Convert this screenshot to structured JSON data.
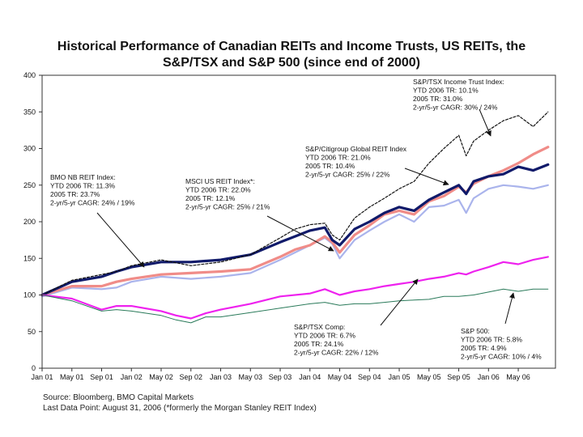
{
  "chart_data": {
    "type": "line",
    "title_line1": "Historical Performance of Canadian REITs and Income Trusts, US REITs, the",
    "title_line2": "S&P/TSX and S&P 500 (since end of 2000)",
    "xlabel": "",
    "ylabel": "",
    "ylim": [
      0,
      400
    ],
    "xlim": [
      0,
      69
    ],
    "grid": false,
    "y_ticks": [
      0,
      50,
      100,
      150,
      200,
      250,
      300,
      350,
      400
    ],
    "x_ticks": [
      {
        "label": "Jan 01",
        "x": 0
      },
      {
        "label": "May 01",
        "x": 4
      },
      {
        "label": "Sep 01",
        "x": 8
      },
      {
        "label": "Jan 02",
        "x": 12
      },
      {
        "label": "May 02",
        "x": 16
      },
      {
        "label": "Sep 02",
        "x": 20
      },
      {
        "label": "Jan 03",
        "x": 24
      },
      {
        "label": "May 03",
        "x": 28
      },
      {
        "label": "Sep 03",
        "x": 32
      },
      {
        "label": "Jan 04",
        "x": 36
      },
      {
        "label": "May 04",
        "x": 40
      },
      {
        "label": "Sep 04",
        "x": 44
      },
      {
        "label": "Jan 05",
        "x": 48
      },
      {
        "label": "May 05",
        "x": 52
      },
      {
        "label": "Sep 05",
        "x": 56
      },
      {
        "label": "Jan 06",
        "x": 60
      },
      {
        "label": "May 06",
        "x": 64
      }
    ],
    "series": [
      {
        "name": "MSCI US REIT Index",
        "color": "#aab4ec",
        "width": 2.2,
        "x": [
          0,
          4,
          8,
          10,
          12,
          16,
          20,
          24,
          28,
          32,
          34,
          36,
          38,
          39,
          40,
          42,
          44,
          46,
          48,
          50,
          52,
          54,
          56,
          57,
          58,
          60,
          62,
          64,
          66,
          68
        ],
        "y": [
          98,
          110,
          108,
          110,
          118,
          125,
          122,
          125,
          130,
          148,
          158,
          168,
          178,
          170,
          150,
          175,
          188,
          200,
          210,
          200,
          220,
          222,
          230,
          212,
          232,
          245,
          250,
          248,
          245,
          250
        ]
      },
      {
        "name": "BMO NB REIT Index",
        "color": "#f08c88",
        "width": 3.2,
        "x": [
          0,
          4,
          8,
          10,
          12,
          16,
          20,
          24,
          28,
          32,
          34,
          36,
          38,
          39,
          40,
          42,
          44,
          46,
          48,
          50,
          52,
          54,
          56,
          57,
          58,
          60,
          62,
          64,
          66,
          68
        ],
        "y": [
          100,
          112,
          112,
          118,
          122,
          128,
          130,
          132,
          135,
          152,
          162,
          168,
          180,
          172,
          158,
          182,
          195,
          210,
          215,
          210,
          228,
          235,
          248,
          240,
          252,
          262,
          270,
          280,
          292,
          302
        ]
      },
      {
        "name": "S&P/Citigroup Global REIT Index",
        "color": "#101a6a",
        "width": 3.2,
        "x": [
          0,
          4,
          8,
          10,
          12,
          16,
          20,
          24,
          28,
          32,
          34,
          36,
          38,
          39,
          40,
          42,
          44,
          46,
          48,
          50,
          52,
          54,
          56,
          57,
          58,
          60,
          62,
          64,
          66,
          68
        ],
        "y": [
          100,
          118,
          125,
          132,
          138,
          145,
          145,
          148,
          155,
          172,
          180,
          188,
          192,
          175,
          168,
          190,
          200,
          212,
          220,
          215,
          230,
          240,
          250,
          238,
          255,
          262,
          265,
          275,
          270,
          278
        ]
      },
      {
        "name": "S&P/TSX Income Trust Index",
        "color": "#111111",
        "width": 1.2,
        "dash": "3,2",
        "x": [
          0,
          4,
          8,
          10,
          12,
          16,
          20,
          24,
          28,
          32,
          34,
          36,
          38,
          39,
          40,
          42,
          44,
          46,
          48,
          50,
          52,
          54,
          56,
          57,
          58,
          60,
          62,
          64,
          66,
          68
        ],
        "y": [
          100,
          120,
          128,
          132,
          140,
          148,
          140,
          145,
          155,
          178,
          190,
          196,
          198,
          182,
          175,
          205,
          220,
          232,
          245,
          255,
          280,
          300,
          318,
          290,
          310,
          325,
          338,
          345,
          330,
          350
        ]
      },
      {
        "name": "S&P/TSX Comp",
        "color": "#ee22ee",
        "width": 2.2,
        "x": [
          0,
          4,
          8,
          10,
          12,
          16,
          18,
          20,
          22,
          24,
          28,
          32,
          36,
          38,
          40,
          42,
          44,
          46,
          48,
          50,
          52,
          54,
          56,
          57,
          58,
          60,
          62,
          64,
          66,
          68
        ],
        "y": [
          100,
          95,
          80,
          85,
          85,
          78,
          72,
          68,
          75,
          80,
          88,
          98,
          102,
          108,
          100,
          105,
          108,
          112,
          115,
          118,
          122,
          125,
          130,
          128,
          132,
          138,
          145,
          142,
          148,
          152
        ]
      },
      {
        "name": "S&P 500",
        "color": "#2a7a5a",
        "width": 1.0,
        "x": [
          0,
          4,
          8,
          10,
          12,
          16,
          18,
          20,
          22,
          24,
          28,
          32,
          36,
          38,
          40,
          42,
          44,
          46,
          48,
          50,
          52,
          54,
          56,
          58,
          60,
          62,
          64,
          66,
          68
        ],
        "y": [
          100,
          92,
          78,
          80,
          78,
          72,
          66,
          62,
          70,
          70,
          76,
          82,
          88,
          90,
          86,
          88,
          88,
          90,
          92,
          93,
          94,
          98,
          98,
          100,
          104,
          108,
          105,
          108,
          108
        ]
      }
    ],
    "annotations": [
      {
        "name": "tsx-income-trust",
        "lines": [
          "S&P/TSX Income Trust Index:",
          "YTD 2006 TR: 10.1%",
          "2005 TR: 31.0%",
          "2-yr/5-yr CAGR: 30% / 24%"
        ]
      },
      {
        "name": "global-reit",
        "lines": [
          "S&P/Citigroup Global REIT Index",
          "YTD 2006 TR: 21.0%",
          "2005 TR: 10.4%",
          "2-yr/5-yr CAGR: 25% / 22%"
        ]
      },
      {
        "name": "bmo-nb-reit",
        "lines": [
          "BMO NB REIT Index:",
          "YTD 2006 TR: 11.3%",
          "2005 TR: 23.7%",
          "2-yr/5-yr CAGR: 24% / 19%"
        ]
      },
      {
        "name": "msci-us-reit",
        "lines": [
          "MSCI US REIT Index*:",
          "YTD 2006 TR: 22.0%",
          "2005 TR: 12.1%",
          "2-yr/5-yr CAGR: 25% / 21%"
        ]
      },
      {
        "name": "tsx-comp",
        "lines": [
          "S&P/TSX Comp:",
          "YTD 2006 TR: 6.7%",
          "2005 TR: 24.1%",
          "2-yr/5-yr CAGR: 22% / 12%"
        ]
      },
      {
        "name": "sp500",
        "lines": [
          "S&P 500:",
          "YTD 2006 TR: 5.8%",
          "2005 TR: 4.9%",
          "2-yr/5-yr CAGR: 10% / 4%"
        ]
      }
    ]
  },
  "source": {
    "line1": "Source: Bloomberg, BMO Capital Markets",
    "line2": "Last Data Point: August 31, 2006 (*formerly the Morgan Stanley REIT Index)"
  }
}
